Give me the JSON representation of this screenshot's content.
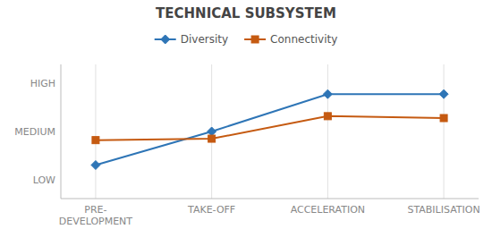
{
  "chart_data": {
    "type": "line",
    "title": "TECHNICAL SUBSYSTEM",
    "categories": [
      "PRE-\nDEVELOPMENT",
      "TAKE-OFF",
      "ACCELERATION",
      "STABILISATION"
    ],
    "series": [
      {
        "name": "Diversity",
        "color": "#2E75B6",
        "marker": "diamond",
        "values": [
          1.3,
          2.0,
          2.78,
          2.78
        ]
      },
      {
        "name": "Connectivity",
        "color": "#C55A11",
        "marker": "square",
        "values": [
          1.82,
          1.85,
          2.32,
          2.28
        ]
      }
    ],
    "ylim": [
      0.6,
      3.4
    ],
    "yticks": [
      {
        "value": 1,
        "label": "LOW"
      },
      {
        "value": 2,
        "label": "MEDIUM"
      },
      {
        "value": 3,
        "label": "HIGH"
      }
    ],
    "grid": "x",
    "legend": "top"
  }
}
